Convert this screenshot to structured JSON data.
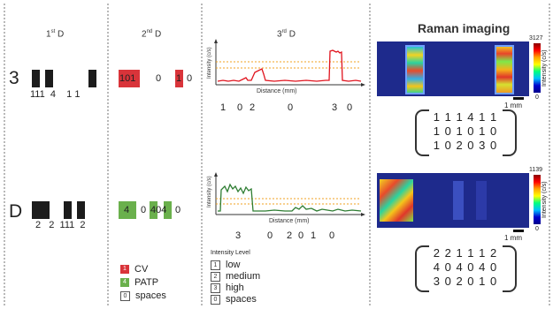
{
  "headers": {
    "d1": {
      "num": "1",
      "sup": "st",
      "letter": "D"
    },
    "d2": {
      "num": "2",
      "sup": "nd",
      "letter": "D"
    },
    "d3": {
      "num": "3",
      "sup": "rd",
      "letter": "D"
    },
    "raman": "Raman imaging"
  },
  "rows": [
    {
      "symbol": "3",
      "d1_codes": "111  4    1 1",
      "d2_labels": {
        "a": "101",
        "b": "0",
        "c": "1",
        "d": "0"
      },
      "d3_codes": [
        "1",
        "0",
        "2",
        "0",
        "3",
        "0"
      ],
      "matrix": [
        "1 1 1 4 1 1",
        "1 0 1 0 1 0",
        "1 0 2 0 3 0"
      ],
      "cbar_max": "3127",
      "cbar_min": "0",
      "scale_bar": "1 mm"
    },
    {
      "symbol": "D",
      "d1_codes": "2   2  111  2",
      "d2_labels": {
        "a": "4",
        "b": "0",
        "c": "404",
        "d": "0"
      },
      "d3_codes": [
        "3",
        "0",
        "2",
        "0",
        "1",
        "0"
      ],
      "matrix": [
        "2 2 1 1 1 2",
        "4 0 4 0 4 0",
        "3 0 2 0 1 0"
      ],
      "cbar_max": "1139",
      "cbar_min": "0",
      "scale_bar": "1 mm"
    }
  ],
  "plot_labels": {
    "ylabel": "Intensity (c/s)",
    "xlabel": "Distance (mm)"
  },
  "cbar_label": "Intensity (c/s)",
  "legend2": [
    {
      "num": "1",
      "label": "CV",
      "color": "#d9343a"
    },
    {
      "num": "4",
      "label": "PATP",
      "color": "#6ab04c"
    },
    {
      "num": "0",
      "label": "spaces",
      "color": ""
    }
  ],
  "legend3": {
    "title": "Intensity Level",
    "items": [
      {
        "num": "1",
        "label": "low"
      },
      {
        "num": "2",
        "label": "medium"
      },
      {
        "num": "3",
        "label": "high"
      },
      {
        "num": "0",
        "label": "spaces"
      }
    ]
  },
  "colors": {
    "cv": "#d9343a",
    "patp": "#6ab04c",
    "line_red": "#e0141e",
    "line_green": "#2e7d32",
    "threshold": "#f0a020",
    "raman_bg": "#1e2a8c"
  }
}
